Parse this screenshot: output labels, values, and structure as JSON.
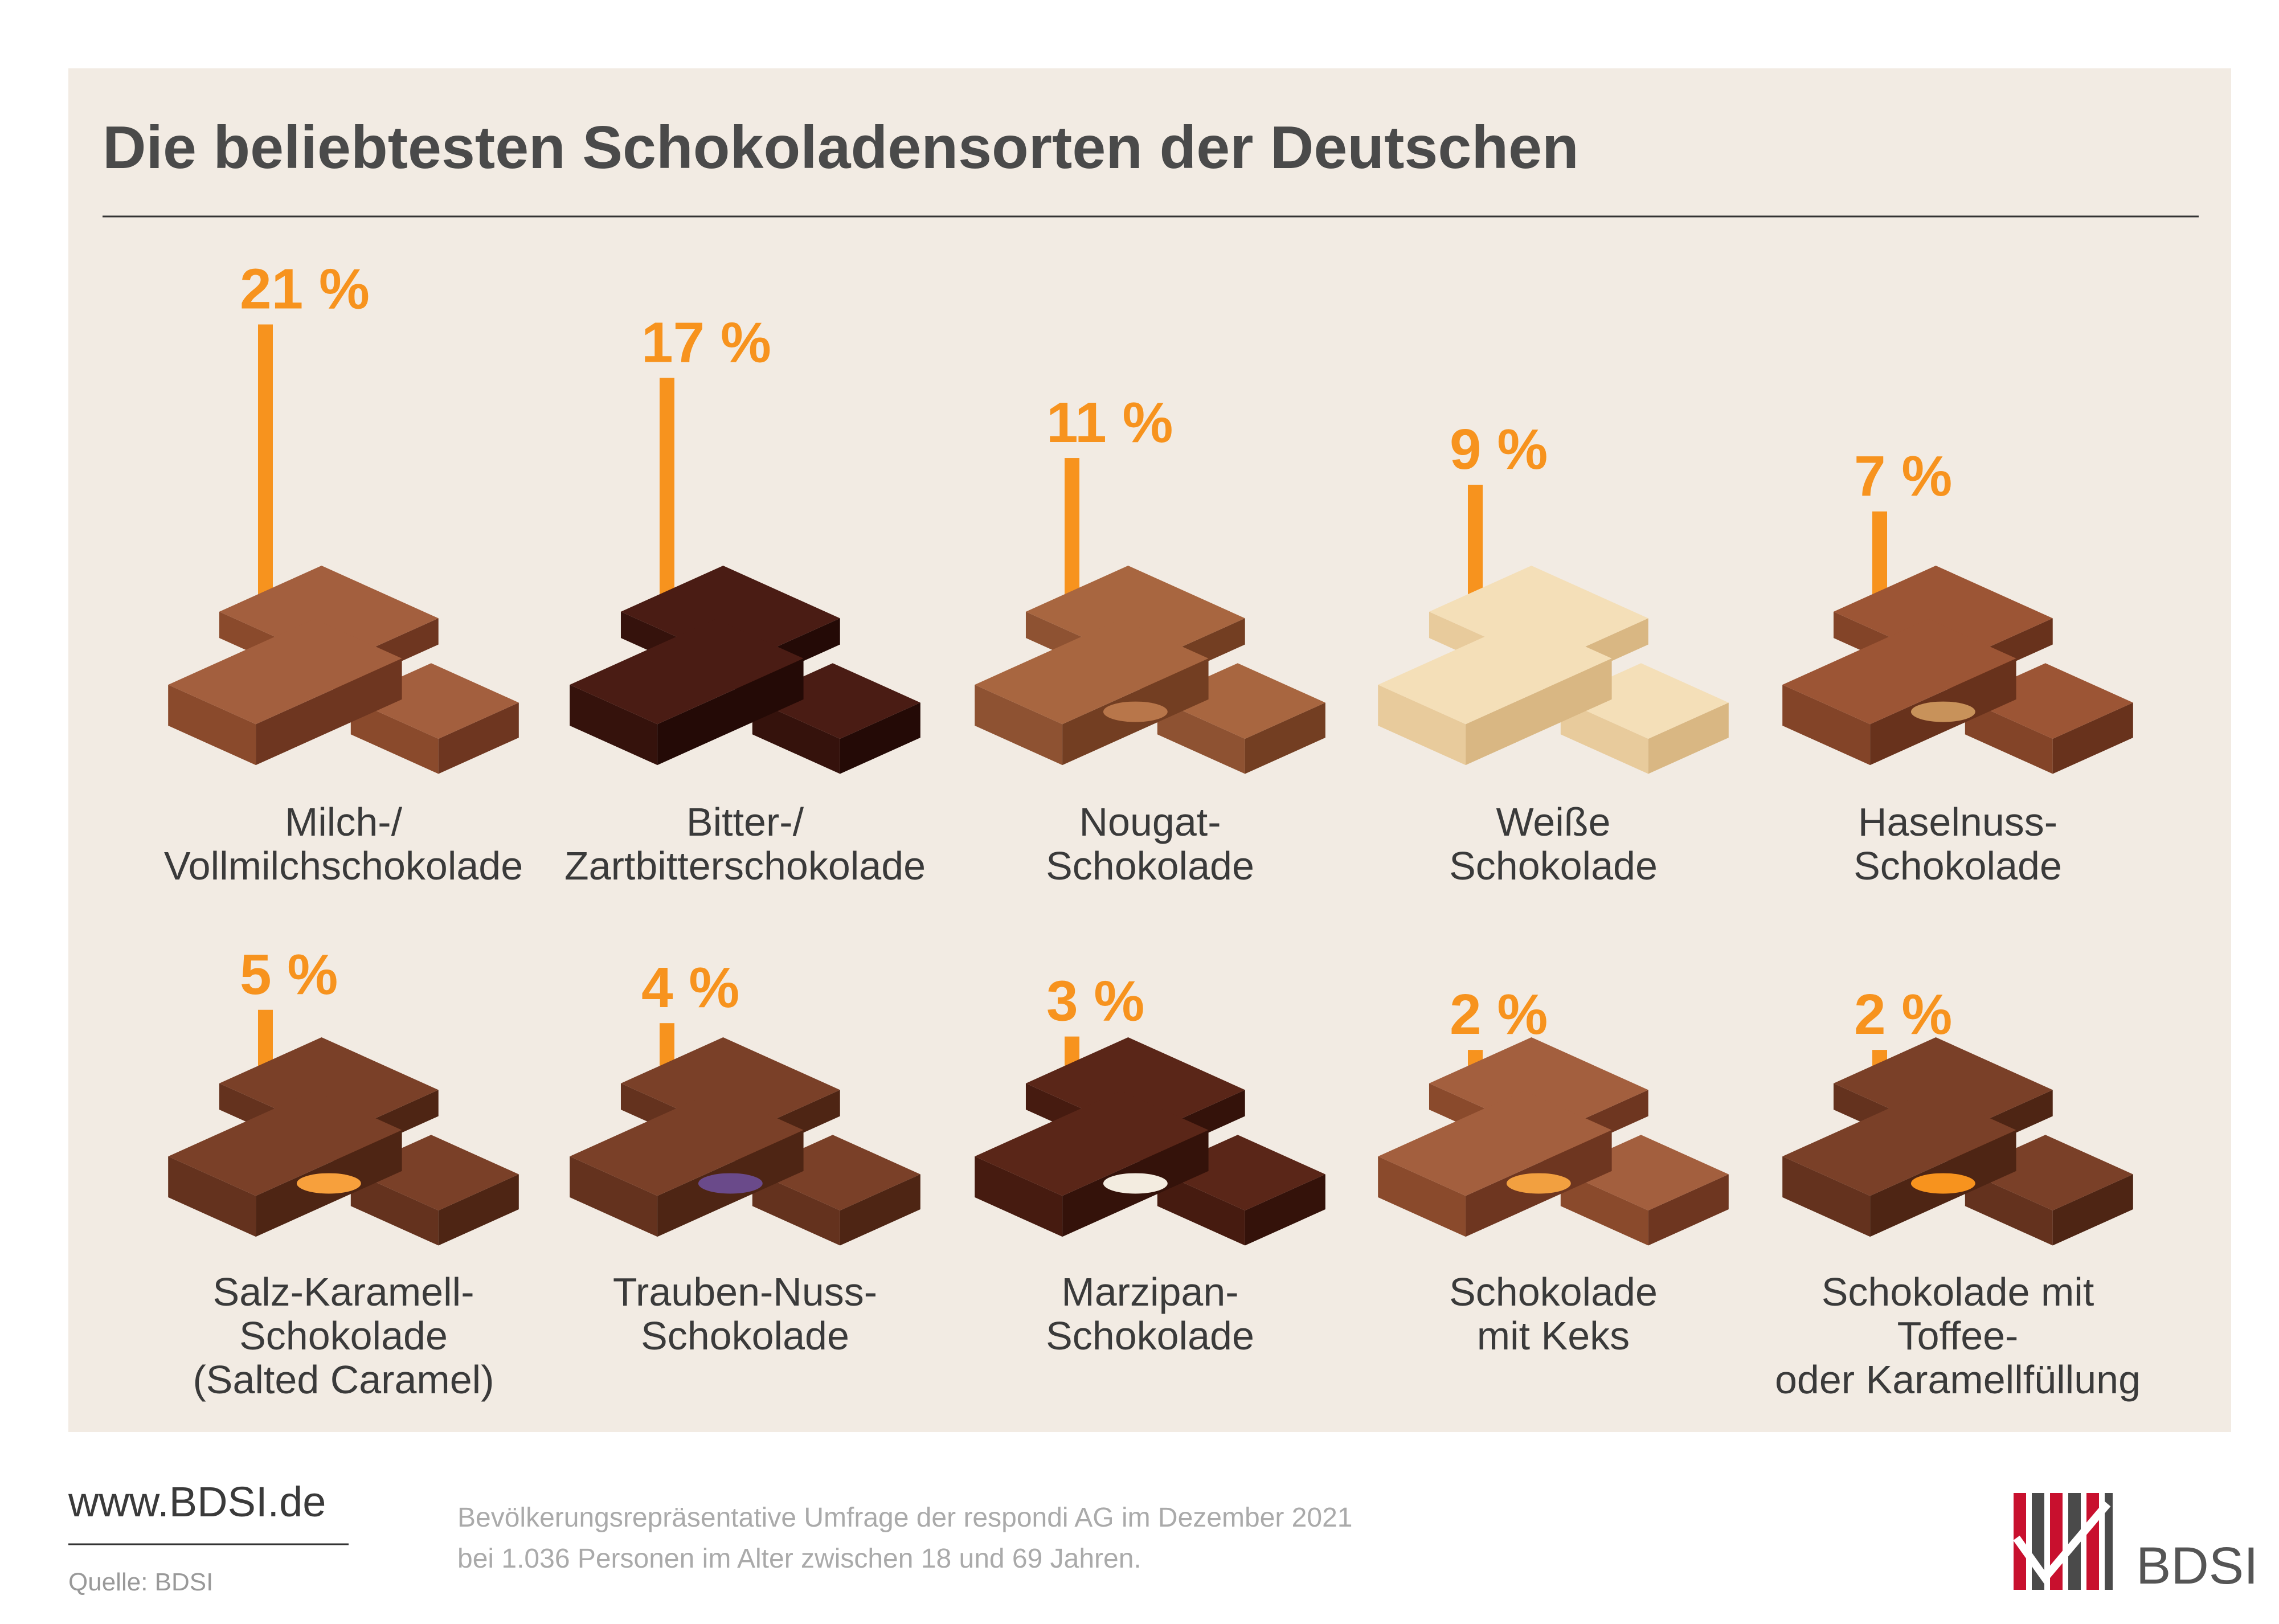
{
  "chart_data": {
    "type": "bar",
    "title": "Die beliebtesten Schokoladensorten der Deutschen",
    "categories": [
      "Milch-/\nVollmilchschokolade",
      "Bitter-/\nZartbitterschokolade",
      "Nougat-\nSchokolade",
      "Weiße\nSchokolade",
      "Haselnuss-\nSchokolade",
      "Salz-Karamell-\nSchokolade\n(Salted Caramel)",
      "Trauben-Nuss-\nSchokolade",
      "Marzipan-\nSchokolade",
      "Schokolade\nmit Keks",
      "Schokolade mit Toffee-\noder Karamellfüllung"
    ],
    "values": [
      21,
      17,
      11,
      9,
      7,
      5,
      4,
      3,
      2,
      2
    ],
    "value_labels": [
      "21 %",
      "17 %",
      "11 %",
      "9 %",
      "7 %",
      "5 %",
      "4 %",
      "3 %",
      "2 %",
      "2 %"
    ],
    "color": "#f7931e"
  },
  "footer": {
    "website": "www.BDSI.de",
    "source": "Quelle: BDSI",
    "note": [
      "Bevölkerungsrepräsentative Umfrage der respondi AG im Dezember 2021",
      "bei 1.036 Personen im Alter zwischen 18 und 69 Jahren."
    ],
    "logo_text": "BDSI"
  }
}
